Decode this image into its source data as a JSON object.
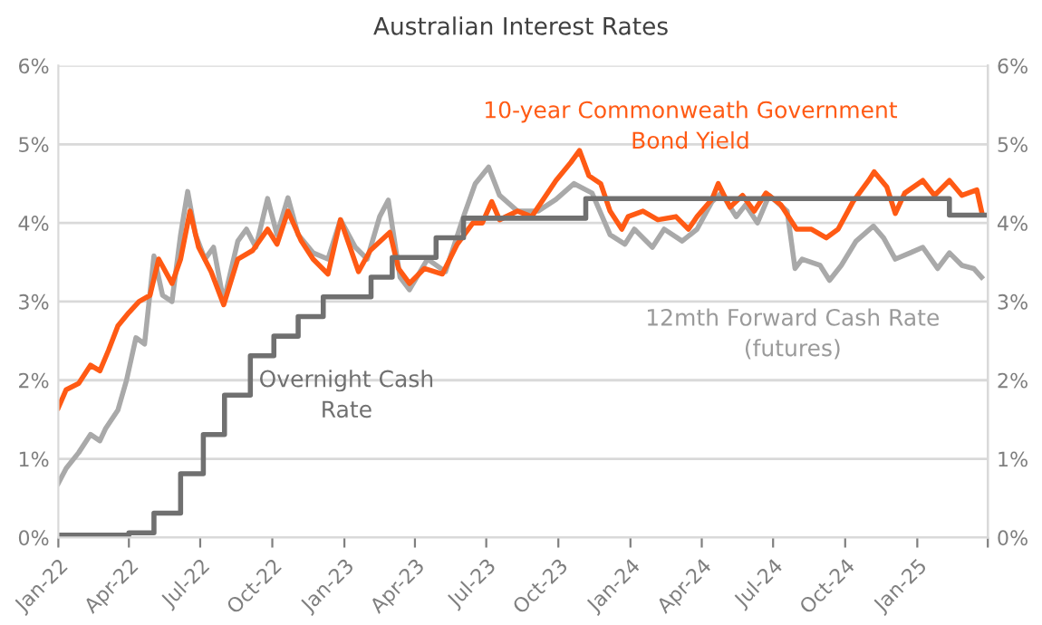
{
  "chart_data": {
    "type": "line",
    "title": "Australian Interest Rates",
    "xlim": [
      "2022-01-01",
      "2025-04-01"
    ],
    "xticks": [
      {
        "value": "2022-01-01",
        "label": "Jan-22"
      },
      {
        "value": "2022-04-01",
        "label": "Apr-22"
      },
      {
        "value": "2022-07-01",
        "label": "Jul-22"
      },
      {
        "value": "2022-10-01",
        "label": "Oct-22"
      },
      {
        "value": "2023-01-01",
        "label": "Jan-23"
      },
      {
        "value": "2023-04-01",
        "label": "Apr-23"
      },
      {
        "value": "2023-07-01",
        "label": "Jul-23"
      },
      {
        "value": "2023-10-01",
        "label": "Oct-23"
      },
      {
        "value": "2024-01-01",
        "label": "Jan-24"
      },
      {
        "value": "2024-04-01",
        "label": "Apr-24"
      },
      {
        "value": "2024-07-01",
        "label": "Jul-24"
      },
      {
        "value": "2024-10-01",
        "label": "Oct-24"
      },
      {
        "value": "2025-01-01",
        "label": "Jan-25"
      },
      {
        "value": "2025-04-01",
        "label": null
      }
    ],
    "ylim": [
      0,
      6
    ],
    "yticks": [
      {
        "value": 0,
        "label": "0%"
      },
      {
        "value": 1,
        "label": "1%"
      },
      {
        "value": 2,
        "label": "2%"
      },
      {
        "value": 3,
        "label": "3%"
      },
      {
        "value": 4,
        "label": "4%"
      },
      {
        "value": 5,
        "label": "5%"
      },
      {
        "value": 6,
        "label": "6%"
      }
    ],
    "y2lim": [
      0,
      6
    ],
    "y2ticks": [
      {
        "value": 0,
        "label": "0%"
      },
      {
        "value": 1,
        "label": "1%"
      },
      {
        "value": 2,
        "label": "2%"
      },
      {
        "value": 3,
        "label": "3%"
      },
      {
        "value": 4,
        "label": "4%"
      },
      {
        "value": 5,
        "label": "5%"
      },
      {
        "value": 6,
        "label": "6%"
      }
    ],
    "grid": "y",
    "legend": false,
    "series": [
      {
        "name": "12mth Forward Cash Rate\n(futures)",
        "color": "#a9a9a9",
        "x": [
          "2022-01-01",
          "2022-01-11",
          "2022-01-27",
          "2022-02-11",
          "2022-02-23",
          "2022-03-02",
          "2022-03-18",
          "2022-03-29",
          "2022-04-10",
          "2022-04-21",
          "2022-05-03",
          "2022-05-14",
          "2022-05-26",
          "2022-06-06",
          "2022-06-15",
          "2022-06-25",
          "2022-07-07",
          "2022-07-18",
          "2022-07-31",
          "2022-08-18",
          "2022-08-29",
          "2022-09-10",
          "2022-09-25",
          "2022-10-07",
          "2022-10-21",
          "2022-11-03",
          "2022-11-22",
          "2022-12-11",
          "2022-12-27",
          "2023-01-15",
          "2023-01-30",
          "2023-02-15",
          "2023-02-26",
          "2023-03-13",
          "2023-03-25",
          "2023-04-17",
          "2023-05-10",
          "2023-06-02",
          "2023-06-17",
          "2023-07-04",
          "2023-07-18",
          "2023-08-10",
          "2023-09-05",
          "2023-09-28",
          "2023-10-21",
          "2023-11-13",
          "2023-12-06",
          "2023-12-25",
          "2024-01-06",
          "2024-01-29",
          "2024-02-13",
          "2024-03-07",
          "2024-03-26",
          "2024-04-14",
          "2024-04-26",
          "2024-05-15",
          "2024-05-27",
          "2024-06-11",
          "2024-06-26",
          "2024-07-19",
          "2024-07-29",
          "2024-08-07",
          "2024-08-30",
          "2024-09-11",
          "2024-09-26",
          "2024-10-15",
          "2024-11-06",
          "2024-11-19",
          "2024-12-04",
          "2024-12-23",
          "2025-01-08",
          "2025-01-27",
          "2025-02-11",
          "2025-02-27",
          "2025-03-14",
          "2025-03-24"
        ],
        "values": [
          0.69,
          0.88,
          1.08,
          1.31,
          1.23,
          1.38,
          1.62,
          2.0,
          2.54,
          2.46,
          3.58,
          3.08,
          3.0,
          3.85,
          4.4,
          3.85,
          3.54,
          3.69,
          3.0,
          3.77,
          3.92,
          3.69,
          4.31,
          3.85,
          4.32,
          3.85,
          3.62,
          3.54,
          4.04,
          3.69,
          3.54,
          4.08,
          4.29,
          3.31,
          3.15,
          3.54,
          3.38,
          4.08,
          4.5,
          4.71,
          4.35,
          4.15,
          4.15,
          4.3,
          4.5,
          4.38,
          3.85,
          3.73,
          3.92,
          3.69,
          3.92,
          3.77,
          3.92,
          4.27,
          4.38,
          4.08,
          4.23,
          4.0,
          4.35,
          4.15,
          3.42,
          3.54,
          3.46,
          3.27,
          3.46,
          3.77,
          3.96,
          3.81,
          3.54,
          3.62,
          3.69,
          3.42,
          3.62,
          3.46,
          3.42,
          3.31
        ]
      },
      {
        "name": "10-year Commonweath Government\nBond Yield",
        "color": "#ff5a14",
        "x": [
          "2022-01-01",
          "2022-01-11",
          "2022-01-27",
          "2022-02-11",
          "2022-02-23",
          "2022-03-06",
          "2022-03-18",
          "2022-04-01",
          "2022-04-14",
          "2022-04-28",
          "2022-05-09",
          "2022-05-26",
          "2022-06-06",
          "2022-06-18",
          "2022-06-29",
          "2022-07-15",
          "2022-07-31",
          "2022-08-18",
          "2022-09-06",
          "2022-09-25",
          "2022-10-07",
          "2022-10-21",
          "2022-11-07",
          "2022-11-22",
          "2022-12-11",
          "2022-12-27",
          "2023-01-19",
          "2023-02-03",
          "2023-02-28",
          "2023-03-11",
          "2023-03-25",
          "2023-04-13",
          "2023-05-06",
          "2023-05-25",
          "2023-06-14",
          "2023-06-26",
          "2023-07-08",
          "2023-07-18",
          "2023-08-10",
          "2023-08-28",
          "2023-09-28",
          "2023-10-17",
          "2023-10-28",
          "2023-11-09",
          "2023-11-24",
          "2023-12-06",
          "2023-12-21",
          "2023-12-29",
          "2024-01-17",
          "2024-02-05",
          "2024-02-28",
          "2024-03-15",
          "2024-03-26",
          "2024-04-14",
          "2024-04-22",
          "2024-05-07",
          "2024-05-23",
          "2024-06-07",
          "2024-06-22",
          "2024-07-11",
          "2024-07-31",
          "2024-08-19",
          "2024-09-07",
          "2024-09-22",
          "2024-10-11",
          "2024-10-31",
          "2024-11-07",
          "2024-11-23",
          "2024-12-04",
          "2024-12-16",
          "2025-01-08",
          "2025-01-23",
          "2025-02-11",
          "2025-02-27",
          "2025-03-18",
          "2025-03-24"
        ],
        "values": [
          1.65,
          1.88,
          1.96,
          2.19,
          2.12,
          2.38,
          2.69,
          2.86,
          3.0,
          3.08,
          3.54,
          3.23,
          3.54,
          4.15,
          3.69,
          3.38,
          2.96,
          3.54,
          3.65,
          3.92,
          3.73,
          4.15,
          3.77,
          3.54,
          3.35,
          4.04,
          3.38,
          3.65,
          3.88,
          3.42,
          3.23,
          3.42,
          3.35,
          3.73,
          4.0,
          4.0,
          4.27,
          4.04,
          4.15,
          4.08,
          4.54,
          4.77,
          4.92,
          4.6,
          4.5,
          4.15,
          3.92,
          4.08,
          4.15,
          4.04,
          4.08,
          3.92,
          4.08,
          4.3,
          4.5,
          4.2,
          4.35,
          4.15,
          4.38,
          4.23,
          3.92,
          3.92,
          3.81,
          3.92,
          4.27,
          4.54,
          4.65,
          4.46,
          4.12,
          4.38,
          4.54,
          4.35,
          4.54,
          4.35,
          4.42,
          4.15
        ]
      },
      {
        "name": "Overnight Cash\nRate",
        "color": "#707070",
        "type": "step",
        "x": [
          "2022-01-01",
          "2022-04-01",
          "2022-05-03",
          "2022-06-06",
          "2022-07-05",
          "2022-08-01",
          "2022-09-03",
          "2022-10-03",
          "2022-11-03",
          "2022-12-05",
          "2023-02-04",
          "2023-03-03",
          "2023-04-28",
          "2023-06-02",
          "2023-11-05",
          "2025-02-11",
          "2025-03-31"
        ],
        "values": [
          0.03,
          0.06,
          0.31,
          0.81,
          1.31,
          1.81,
          2.31,
          2.56,
          2.81,
          3.06,
          3.31,
          3.56,
          3.81,
          4.06,
          4.31,
          4.1,
          4.1
        ]
      }
    ]
  }
}
